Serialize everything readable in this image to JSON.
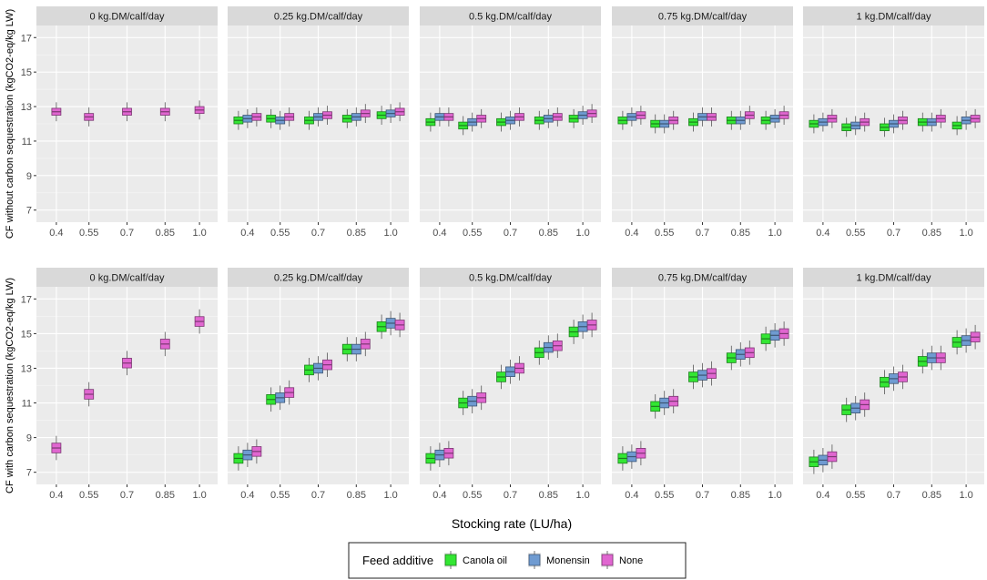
{
  "chart_data": {
    "type": "boxplot",
    "xlabel": "Stocking rate (LU/ha)",
    "facets": [
      "0 kg.DM/calf/day",
      "0.25 kg.DM/calf/day",
      "0.5 kg.DM/calf/day",
      "0.75 kg.DM/calf/day",
      "1 kg.DM/calf/day"
    ],
    "x_categories": [
      "0.4",
      "0.55",
      "0.7",
      "0.85",
      "1.0"
    ],
    "y_ticks": [
      7,
      9,
      11,
      13,
      15,
      17
    ],
    "ylim": [
      6.3,
      17.7
    ],
    "legend": {
      "title": "Feed additive",
      "entries": [
        {
          "name": "Canola oil",
          "color": "#33e633"
        },
        {
          "name": "Monensin",
          "color": "#6f9bd1"
        },
        {
          "name": "None",
          "color": "#e066d0"
        }
      ]
    },
    "rows": [
      {
        "ylabel": "CF without carbon sequestration (kgCO2-eq/kg LW)",
        "panels": [
          {
            "None": [
              12.7,
              12.4,
              12.7,
              12.7,
              12.8
            ]
          },
          {
            "Canola oil": [
              12.2,
              12.3,
              12.2,
              12.3,
              12.5
            ],
            "Monensin": [
              12.3,
              12.2,
              12.4,
              12.4,
              12.6
            ],
            "None": [
              12.4,
              12.4,
              12.5,
              12.6,
              12.7
            ]
          },
          {
            "Canola oil": [
              12.1,
              11.9,
              12.1,
              12.2,
              12.3
            ],
            "Monensin": [
              12.4,
              12.1,
              12.2,
              12.3,
              12.5
            ],
            "None": [
              12.4,
              12.3,
              12.4,
              12.4,
              12.6
            ]
          },
          {
            "Canola oil": [
              12.2,
              12.0,
              12.1,
              12.2,
              12.2
            ],
            "Monensin": [
              12.4,
              12.0,
              12.4,
              12.2,
              12.3
            ],
            "None": [
              12.5,
              12.2,
              12.4,
              12.5,
              12.5
            ]
          },
          {
            "Canola oil": [
              12.0,
              11.8,
              11.8,
              12.1,
              11.9
            ],
            "Monensin": [
              12.1,
              11.9,
              12.0,
              12.1,
              12.2
            ],
            "None": [
              12.3,
              12.1,
              12.2,
              12.3,
              12.3
            ]
          }
        ]
      },
      {
        "ylabel": "CF with carbon sequestration (kgCO2-eq/kg LW)",
        "panels": [
          {
            "None": [
              8.4,
              11.5,
              13.3,
              14.4,
              15.7
            ]
          },
          {
            "Canola oil": [
              7.8,
              11.2,
              12.9,
              14.1,
              15.4
            ],
            "Monensin": [
              8.0,
              11.3,
              13.0,
              14.1,
              15.6
            ],
            "None": [
              8.2,
              11.6,
              13.2,
              14.4,
              15.5
            ]
          },
          {
            "Canola oil": [
              7.8,
              11.0,
              12.5,
              13.9,
              15.1
            ],
            "Monensin": [
              8.0,
              11.1,
              12.8,
              14.2,
              15.4
            ],
            "None": [
              8.1,
              11.3,
              13.0,
              14.3,
              15.5
            ]
          },
          {
            "Canola oil": [
              7.8,
              10.8,
              12.5,
              13.6,
              14.7
            ],
            "Monensin": [
              7.9,
              11.0,
              12.6,
              13.8,
              14.9
            ],
            "None": [
              8.1,
              11.1,
              12.7,
              13.9,
              15.0
            ]
          },
          {
            "Canola oil": [
              7.6,
              10.6,
              12.2,
              13.4,
              14.5
            ],
            "Monensin": [
              7.7,
              10.7,
              12.4,
              13.6,
              14.6
            ],
            "None": [
              7.9,
              10.9,
              12.5,
              13.6,
              14.8
            ]
          }
        ]
      }
    ]
  }
}
